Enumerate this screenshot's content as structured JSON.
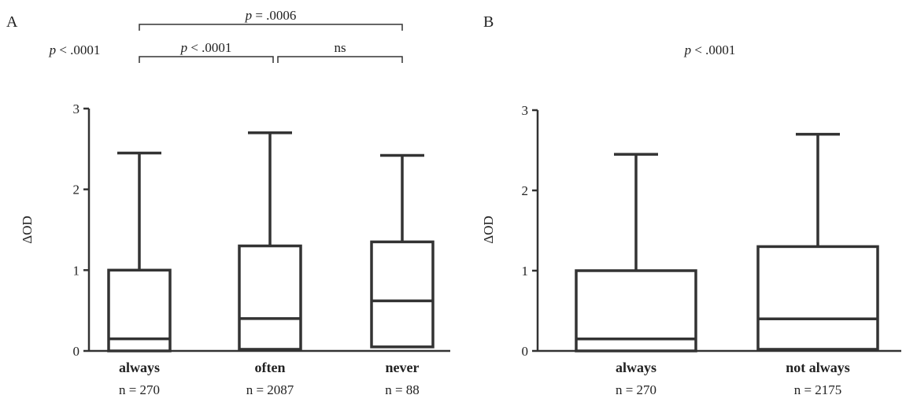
{
  "chart_data": [
    {
      "panel": "A",
      "type": "box",
      "ylabel": "ΔOD",
      "ylim": [
        0,
        3
      ],
      "yticks": [
        0,
        1,
        2,
        3
      ],
      "categories": [
        "always",
        "often",
        "never"
      ],
      "n_labels": [
        "n = 270",
        "n = 2087",
        "n = 88"
      ],
      "boxes": [
        {
          "min": 0,
          "q1": 0,
          "median": 0.15,
          "q3": 1.0,
          "max": 2.45
        },
        {
          "min": 0.02,
          "q1": 0.02,
          "median": 0.4,
          "q3": 1.3,
          "max": 2.7
        },
        {
          "min": 0.05,
          "q1": 0.05,
          "median": 0.62,
          "q3": 1.35,
          "max": 2.42
        }
      ],
      "overall_annotation": {
        "italic": "p",
        "rest": " < .0001"
      },
      "comparisons": [
        {
          "from": 0,
          "to": 2,
          "italic": "p",
          "rest": " = .0006",
          "level": 2
        },
        {
          "from": 0,
          "to": 1,
          "italic": "p",
          "rest": " < .0001",
          "level": 1
        },
        {
          "from": 1,
          "to": 2,
          "italic": "",
          "rest": "ns",
          "level": 1
        }
      ]
    },
    {
      "panel": "B",
      "type": "box",
      "ylabel": "ΔOD",
      "ylim": [
        0,
        3
      ],
      "yticks": [
        0,
        1,
        2,
        3
      ],
      "categories": [
        "always",
        "not always"
      ],
      "n_labels": [
        "n = 270",
        "n = 2175"
      ],
      "boxes": [
        {
          "min": 0,
          "q1": 0,
          "median": 0.15,
          "q3": 1.0,
          "max": 2.45
        },
        {
          "min": 0.02,
          "q1": 0.02,
          "median": 0.4,
          "q3": 1.3,
          "max": 2.7
        }
      ],
      "overall_annotation": {
        "italic": "p",
        "rest": " < .0001"
      },
      "comparisons": []
    }
  ]
}
